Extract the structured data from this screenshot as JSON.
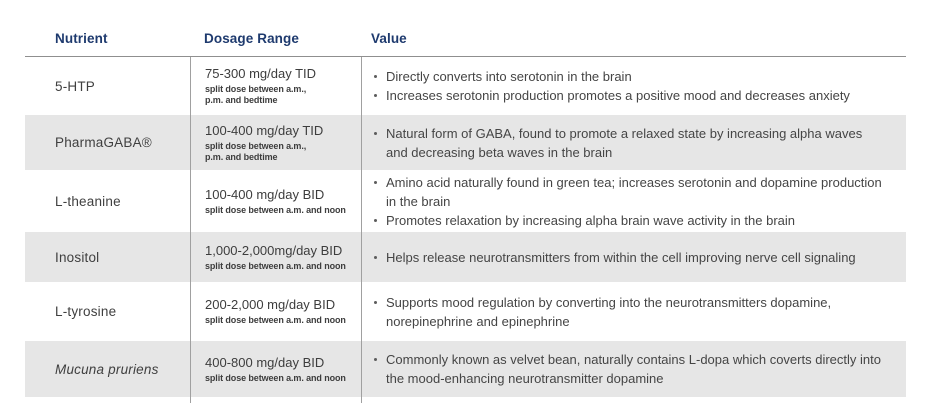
{
  "table": {
    "columns": {
      "nutrient": "Nutrient",
      "dosage": "Dosage Range",
      "value": "Value"
    },
    "rows": [
      {
        "nutrient": "5-HTP",
        "dosage": "75-300 mg/day TID",
        "dosage_note": "split dose between a.m.,\np.m. and bedtime",
        "values": [
          "Directly converts into serotonin in the brain",
          "Increases serotonin production promotes a positive mood and decreases anxiety"
        ]
      },
      {
        "nutrient": "PharmaGABA®",
        "dosage": "100-400 mg/day TID",
        "dosage_note": "split dose between a.m.,\np.m. and bedtime",
        "values": [
          "Natural form of GABA, found to promote a relaxed state by increasing alpha waves and decreasing beta waves in the brain"
        ]
      },
      {
        "nutrient": "L-theanine",
        "dosage": "100-400 mg/day BID",
        "dosage_note": "split dose between a.m. and noon",
        "values": [
          "Amino acid naturally found in green tea; increases serotonin and dopamine production in the brain",
          "Promotes relaxation by increasing alpha brain wave activity in the brain"
        ]
      },
      {
        "nutrient": "Inositol",
        "dosage": "1,000-2,000mg/day BID",
        "dosage_note": "split dose between a.m. and noon",
        "values": [
          "Helps release neurotransmitters from within the cell improving nerve cell signaling"
        ]
      },
      {
        "nutrient": "L-tyrosine",
        "dosage": "200-2,000 mg/day BID",
        "dosage_note": "split dose between a.m. and noon",
        "values": [
          "Supports mood regulation by converting into the neurotransmitters dopamine, norepinephrine and epinephrine"
        ]
      },
      {
        "nutrient": "Mucuna pruriens",
        "dosage": "400-800 mg/day BID",
        "dosage_note": "split dose between a.m. and noon",
        "values": [
          "Commonly known as velvet bean, naturally contains L-dopa which coverts directly into the mood-enhancing neurotransmitter dopamine"
        ]
      }
    ]
  },
  "colors": {
    "header_text": "#1e3a6e",
    "alt_row_bg": "#e6e6e6",
    "divider": "#a0a0a0",
    "body_text": "#454545"
  }
}
